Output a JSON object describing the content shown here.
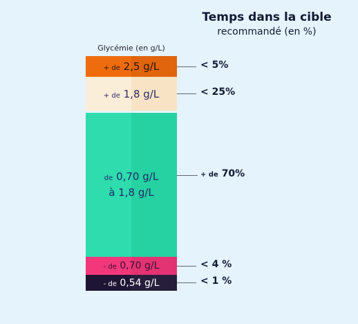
{
  "header": {
    "title": "Temps dans la cible",
    "subtitle": "recommandé (en %)"
  },
  "column_label": "Glycémie (en g/L)",
  "segments": [
    {
      "label_prefix": "+ de",
      "label_main": "2,5 g/L",
      "label_line2": "",
      "target": "< 5%",
      "share_percent": 5,
      "color": "#ee6c0e"
    },
    {
      "label_prefix": "+ de",
      "label_main": "1,8 g/L",
      "label_line2": "",
      "target": "< 25%",
      "share_percent": 25,
      "color": "#fbeed8"
    },
    {
      "label_prefix": "de",
      "label_main": "0,70 g/L",
      "label_line2": "à 1,8 g/L",
      "target_prefix": "+ de",
      "target": "70%",
      "share_percent": 70,
      "color": "#2fdcae"
    },
    {
      "label_prefix": "- de",
      "label_main": "0,70 g/L",
      "label_line2": "",
      "target": "< 4 %",
      "share_percent": 4,
      "color": "#f2377b"
    },
    {
      "label_prefix": "- de",
      "label_main": "0,54 g/L",
      "label_line2": "",
      "target": "< 1 %",
      "share_percent": 1,
      "color": "#1e1534"
    }
  ]
}
